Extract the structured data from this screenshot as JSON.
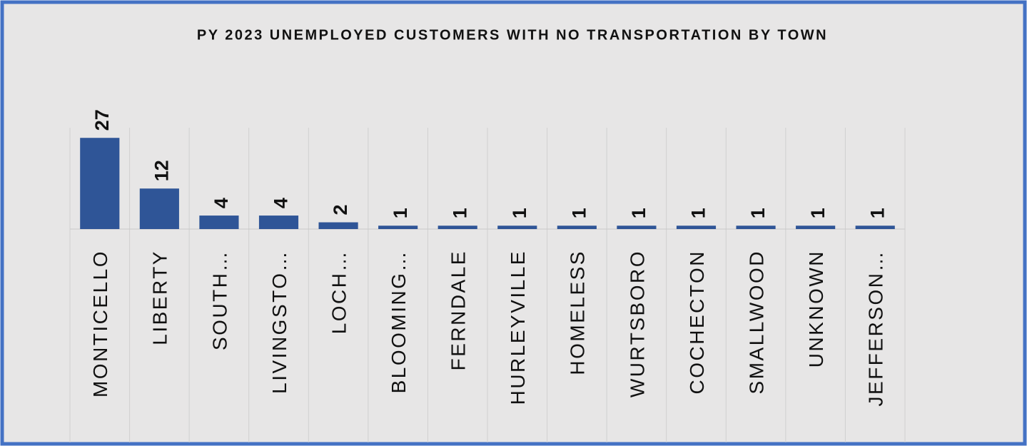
{
  "chart_data": {
    "type": "bar",
    "title": "PY 2023 UNEMPLOYED CUSTOMERS WITH NO TRANSPORTATION BY TOWN",
    "categories": [
      "MONTICELLO",
      "LIBERTY",
      "SOUTH…",
      "LIVINGSTO…",
      "LOCH…",
      "BLOOMING…",
      "FERNDALE",
      "HURLEYVILLE",
      "HOMELESS",
      "WURTSBORO",
      "COCHECTON",
      "SMALLWOOD",
      "UNKNOWN",
      "JEFFERSON…"
    ],
    "values": [
      27,
      12,
      4,
      4,
      2,
      1,
      1,
      1,
      1,
      1,
      1,
      1,
      1,
      1
    ],
    "color": "#2f5597",
    "ylim": [
      0,
      30
    ]
  }
}
